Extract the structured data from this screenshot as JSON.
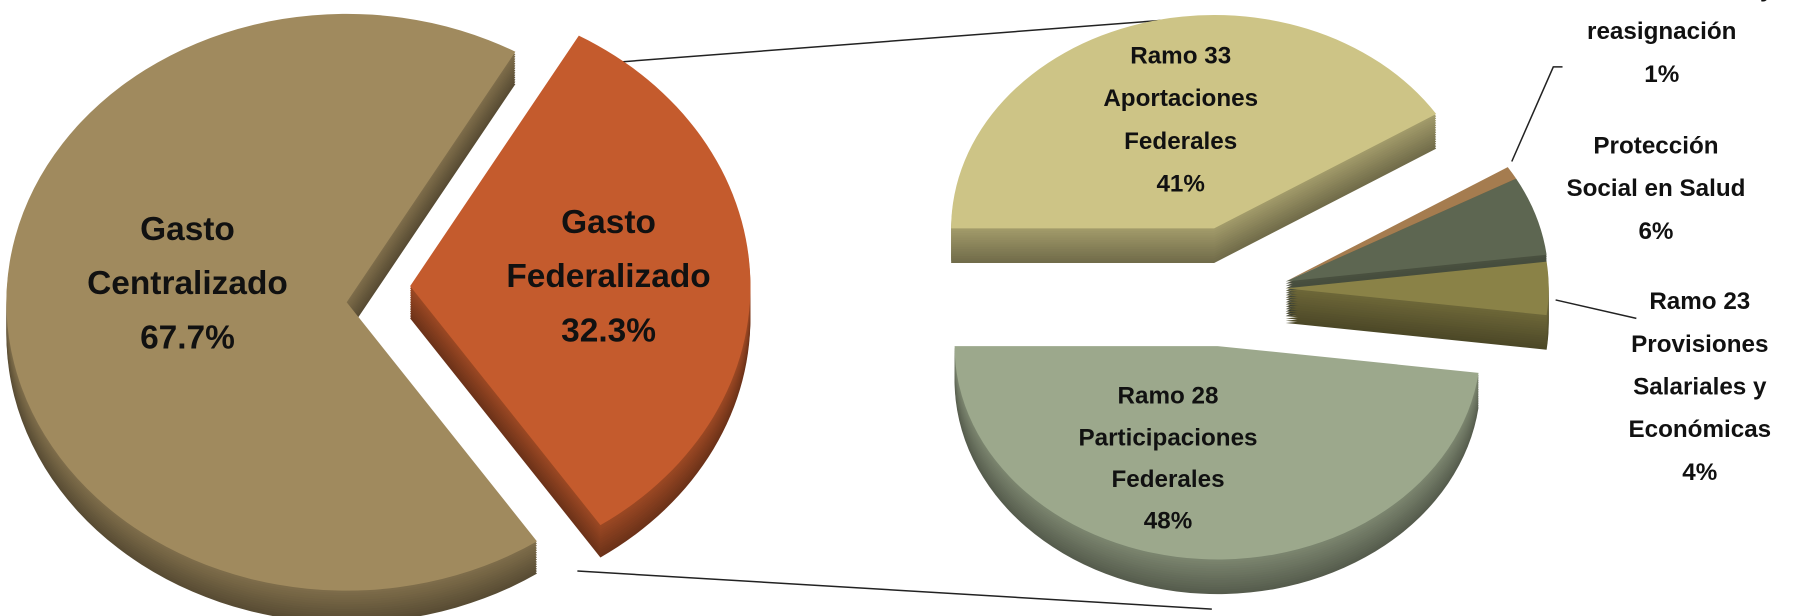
{
  "chart_data": [
    {
      "type": "pie",
      "categories": [
        "Gasto\nCentralizado",
        "Gasto\nFederalizado"
      ],
      "values": [
        67.7,
        32.3
      ],
      "value_labels": [
        "67.7%",
        "32.3%"
      ],
      "colors": [
        "#a08a5e",
        "#c45b2d"
      ]
    },
    {
      "type": "pie",
      "categories": [
        "Ramo 33\nAportaciones\nFederales",
        "descentralización y\nreasignación",
        "Protección\nSocial en Salud",
        "Ramo 23\nProvisiones\nSalariales y\nEconómicas",
        "Ramo 28\nParticipaciones\nFederales"
      ],
      "values": [
        41,
        1,
        6,
        4,
        48
      ],
      "value_labels": [
        "41%",
        "1%",
        "6%",
        "4%",
        "48%"
      ],
      "colors": [
        "#cdc486",
        "#a57c4f",
        "#5d6651",
        "#8a8247",
        "#9ca88c"
      ]
    }
  ]
}
